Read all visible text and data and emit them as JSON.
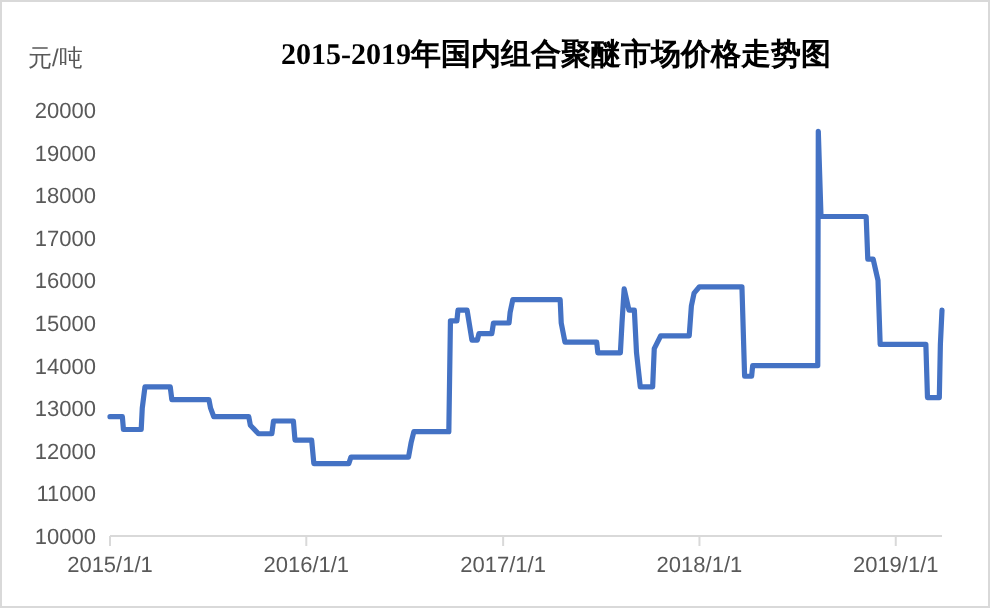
{
  "chart_data": {
    "type": "line",
    "title": "2015-2019年国内组合聚醚市场价格走势图",
    "ylabel": "元/吨",
    "x": [
      "2015-01-01",
      "2015-01-24",
      "2015-01-26",
      "2015-02-28",
      "2015-03-02",
      "2015-03-07",
      "2015-04-23",
      "2015-04-26",
      "2015-07-04",
      "2015-07-07",
      "2015-07-13",
      "2015-09-16",
      "2015-09-19",
      "2015-10-04",
      "2015-10-29",
      "2015-11-01",
      "2015-12-08",
      "2015-12-11",
      "2016-01-11",
      "2016-01-15",
      "2016-03-20",
      "2016-03-24",
      "2016-07-09",
      "2016-07-14",
      "2016-07-19",
      "2016-09-22",
      "2016-09-25",
      "2016-10-07",
      "2016-10-09",
      "2016-10-26",
      "2016-11-04",
      "2016-11-14",
      "2016-11-17",
      "2016-12-11",
      "2016-12-14",
      "2017-01-12",
      "2017-01-14",
      "2017-01-19",
      "2017-04-17",
      "2017-04-19",
      "2017-04-26",
      "2017-06-24",
      "2017-06-26",
      "2017-08-07",
      "2017-08-10",
      "2017-08-14",
      "2017-08-23",
      "2017-09-02",
      "2017-09-06",
      "2017-09-13",
      "2017-10-06",
      "2017-10-09",
      "2017-10-21",
      "2017-12-13",
      "2017-12-17",
      "2017-12-22",
      "2018-01-01",
      "2018-03-21",
      "2018-03-26",
      "2018-04-08",
      "2018-04-10",
      "2018-08-09",
      "2018-08-10",
      "2018-08-15",
      "2018-11-07",
      "2018-11-10",
      "2018-11-20",
      "2018-11-29",
      "2018-12-03",
      "2019-02-26",
      "2019-03-01",
      "2019-03-23",
      "2019-03-25",
      "2019-03-28"
    ],
    "series": [
      {
        "color": "#4472c4",
        "values": [
          12800,
          12800,
          12500,
          12500,
          13000,
          13500,
          13500,
          13200,
          13200,
          13000,
          12800,
          12800,
          12600,
          12400,
          12400,
          12700,
          12700,
          12250,
          12250,
          11700,
          11700,
          11850,
          11850,
          12200,
          12450,
          12450,
          15050,
          15050,
          15300,
          15300,
          14600,
          14600,
          14750,
          14750,
          15000,
          15000,
          15250,
          15550,
          15550,
          15000,
          14550,
          14550,
          14300,
          14300,
          15000,
          15800,
          15300,
          15300,
          14300,
          13500,
          13500,
          14400,
          14700,
          14700,
          15400,
          15700,
          15850,
          15850,
          13750,
          13750,
          14000,
          14000,
          19500,
          17500,
          17500,
          16500,
          16500,
          16000,
          14500,
          14500,
          13250,
          13250,
          14500,
          15300
        ]
      }
    ],
    "xlim": [
      "2015-01-01",
      "2019-03-28"
    ],
    "xticks": [
      {
        "value": "2015-01-01",
        "label": "2015/1/1"
      },
      {
        "value": "2016-01-01",
        "label": "2016/1/1"
      },
      {
        "value": "2017-01-01",
        "label": "2017/1/1"
      },
      {
        "value": "2018-01-01",
        "label": "2018/1/1"
      },
      {
        "value": "2019-01-01",
        "label": "2019/1/1"
      }
    ],
    "ylim": [
      10000,
      20000
    ],
    "yticks": [
      10000,
      11000,
      12000,
      13000,
      14000,
      15000,
      16000,
      17000,
      18000,
      19000,
      20000
    ]
  }
}
